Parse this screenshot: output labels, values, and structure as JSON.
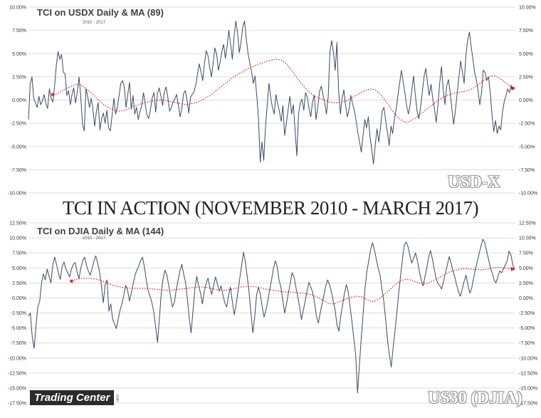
{
  "main_title": "TCI IN ACTION (NOVEMBER 2010 - MARCH 2017)",
  "colors": {
    "line": "#3b4a63",
    "ma": "#e02020",
    "grid": "#dcdcdc",
    "axis_text": "#333333"
  },
  "chart_data": [
    {
      "type": "line",
      "title": "TCI on USDX Daily & MA (89)",
      "subtitle": "2010 - 2017",
      "watermark": "USD-X",
      "ylim": [
        -10,
        10
      ],
      "ytick_labels": [
        "10.00%",
        "7.50%",
        "5.00%",
        "2.50%",
        "0.00%",
        "-2.50%",
        "-5.00%",
        "-7.50%",
        "-10.00%"
      ],
      "yticks": [
        10,
        7.5,
        5,
        2.5,
        0,
        -2.5,
        -5,
        -7.5,
        -10
      ],
      "grid": true,
      "series": [
        {
          "values": [
            -2.1,
            1.7,
            2.5,
            0.2,
            -0.3,
            -0.8,
            0.4,
            -0.5,
            -0.1,
            0.6,
            -0.4,
            -0.9,
            1.2,
            0.2,
            -0.2,
            1.5,
            3.8,
            5.2,
            4.4,
            4.9,
            3.0,
            2.8,
            0.5,
            1.0,
            -0.5,
            0.6,
            1.3,
            -0.3,
            0.8,
            2.5,
            0.4,
            -2.6,
            -3.3,
            1.2,
            0.4,
            -0.8,
            0.2,
            -1.0,
            -2.8,
            -1.2,
            -0.3,
            -3.2,
            -2.0,
            -1.4,
            -2.5,
            -1.1,
            -3.0,
            -3.3,
            -1.6,
            0.2,
            -1.5,
            -0.8,
            0.5,
            1.8,
            2.1,
            1.4,
            -0.8,
            0.6,
            1.9,
            -1.0,
            0.5,
            -1.5,
            -0.8,
            -2.1,
            -1.2,
            -0.6,
            0.8,
            -0.5,
            -1.6,
            -2.0,
            -1.0,
            0.2,
            0.8,
            -1.3,
            0.7,
            1.3,
            0.4,
            -0.6,
            0.9,
            1.4,
            0.3,
            -1.2,
            -0.8,
            -0.2,
            0.1,
            0.6,
            -0.5,
            -1.8,
            -0.9,
            0.7,
            1.0,
            0.0,
            -1.4,
            0.3,
            0.6,
            0.9,
            1.6,
            2.8,
            3.9,
            3.0,
            2.1,
            4.0,
            5.3,
            4.8,
            3.5,
            2.5,
            4.0,
            5.6,
            4.9,
            3.2,
            4.1,
            5.2,
            6.0,
            4.5,
            5.8,
            7.5,
            6.0,
            4.4,
            6.9,
            8.5,
            7.2,
            5.1,
            6.3,
            7.9,
            8.5,
            6.6,
            5.0,
            4.0,
            3.1,
            1.8,
            2.6,
            0.5,
            -2.0,
            -6.7,
            -4.5,
            -6.5,
            -3.0,
            -0.5,
            1.8,
            0.3,
            -0.8,
            -1.5,
            0.6,
            -0.4,
            -1.2,
            -2.3,
            -0.6,
            -3.8,
            -2.5,
            -1.0,
            0.4,
            -1.5,
            -0.5,
            -3.2,
            -6.0,
            -1.5,
            -0.3,
            0.1,
            -1.1,
            0.8,
            0.3,
            -0.9,
            -1.8,
            -0.2,
            0.5,
            -2.1,
            -0.8,
            0.9,
            1.5,
            0.6,
            -0.3,
            -1.5,
            0.4,
            5.2,
            6.4,
            5.1,
            3.2,
            6.2,
            1.0,
            -1.5,
            0.2,
            1.1,
            -0.6,
            -1.8,
            -1.0,
            0.5,
            -0.4,
            -1.1,
            -2.2,
            -3.5,
            -4.5,
            -5.6,
            -3.8,
            -2.1,
            -3.0,
            -1.8,
            -3.9,
            -5.4,
            -6.9,
            -4.8,
            -3.1,
            -4.5,
            -3.0,
            -1.2,
            -0.8,
            -2.2,
            -3.5,
            -4.9,
            -2.8,
            -3.6,
            -2.0,
            -1.0,
            0.5,
            1.8,
            3.2,
            2.0,
            0.8,
            -0.6,
            -1.5,
            -0.5,
            1.1,
            2.6,
            0.5,
            -1.2,
            -2.0,
            -0.8,
            0.9,
            2.5,
            3.4,
            1.8,
            0.5,
            1.7,
            0.2,
            -1.0,
            -2.4,
            -0.5,
            1.8,
            3.6,
            1.2,
            -0.5,
            1.5,
            2.2,
            0.8,
            -1.0,
            -2.6,
            -1.1,
            0.7,
            2.5,
            4.2,
            3.0,
            1.8,
            4.8,
            6.4,
            7.3,
            5.8,
            4.5,
            3.0,
            2.2,
            1.0,
            -0.5,
            0.8,
            3.2,
            3.0,
            2.1,
            2.5,
            0.8,
            -1.6,
            -3.4,
            -2.2,
            -3.6,
            -2.8,
            -3.2,
            -1.3,
            -0.2,
            0.5,
            1.2,
            0.8,
            1.6,
            1.1,
            1.3
          ]
        },
        {
          "name": "",
          "start_index": 14,
          "values": [
            0.6,
            0.7,
            1.0,
            1.3,
            1.5,
            1.7,
            1.6,
            1.2,
            0.8,
            0.3,
            -0.2,
            -0.6,
            -0.9,
            -1.1,
            -1.2,
            -1.1,
            -0.9,
            -0.7,
            -0.5,
            -0.3,
            -0.2,
            -0.1,
            0.0,
            0.0,
            -0.1,
            -0.2,
            -0.3,
            -0.4,
            -0.5,
            -0.4,
            -0.3,
            -0.1,
            0.2,
            0.5,
            0.9,
            1.3,
            1.7,
            2.1,
            2.5,
            2.8,
            3.1,
            3.4,
            3.6,
            3.8,
            4.0,
            4.2,
            4.3,
            4.4,
            4.3,
            3.9,
            3.3,
            2.6,
            1.9,
            1.3,
            0.8,
            0.4,
            0.2,
            0.0,
            -0.2,
            -0.3,
            -0.3,
            -0.2,
            0.0,
            0.3,
            0.6,
            0.9,
            1.1,
            1.2,
            1.0,
            0.5,
            -0.2,
            -0.9,
            -1.6,
            -2.1,
            -2.4,
            -2.3,
            -2.0,
            -1.6,
            -1.2,
            -0.8,
            -0.4,
            0.0,
            0.3,
            0.5,
            0.7,
            0.8,
            0.9,
            1.0,
            1.2,
            1.5,
            1.9,
            2.3,
            2.6,
            2.6,
            2.3,
            1.9,
            1.5,
            1.3
          ]
        }
      ]
    },
    {
      "type": "line",
      "title": "TCI on DJIA Daily & MA (144)",
      "subtitle": "2010 - 2017",
      "watermark": "US30 (DJIA)",
      "ylim": [
        -17.5,
        12.5
      ],
      "ytick_labels": [
        "12.50%",
        "10.00%",
        "7.50%",
        "5.00%",
        "2.50%",
        "0.00%",
        "-2.50%",
        "-5.00%",
        "-7.50%",
        "-10.00%",
        "-12.50%",
        "-15.00%",
        "-17.50%"
      ],
      "yticks": [
        12.5,
        10,
        7.5,
        5,
        2.5,
        0,
        -2.5,
        -5,
        -7.5,
        -10,
        -12.5,
        -15,
        -17.5
      ],
      "grid": true,
      "series": [
        {
          "values": [
            -3.0,
            -2.5,
            -6.5,
            -8.4,
            -4.8,
            -1.5,
            -0.5,
            2.5,
            4.0,
            3.0,
            4.8,
            3.6,
            2.5,
            5.5,
            6.8,
            5.6,
            4.2,
            3.1,
            5.2,
            6.0,
            4.8,
            4.2,
            3.5,
            4.8,
            5.6,
            5.9,
            4.3,
            3.2,
            5.0,
            6.2,
            6.8,
            5.5,
            4.5,
            3.8,
            4.9,
            6.1,
            7.0,
            5.8,
            4.4,
            2.1,
            -0.8,
            2.2,
            3.0,
            -2.2,
            -1.0,
            -3.5,
            -4.3,
            -5.1,
            -3.5,
            -2.0,
            -1.0,
            0.5,
            2.1,
            1.3,
            -0.5,
            0.8,
            2.4,
            3.8,
            4.7,
            5.3,
            6.2,
            6.8,
            5.1,
            3.0,
            1.2,
            0.3,
            -0.8,
            -2.3,
            -4.8,
            -7.4,
            -3.5,
            0.8,
            3.2,
            4.6,
            3.8,
            2.1,
            0.3,
            -1.5,
            -0.8,
            1.3,
            3.0,
            4.5,
            5.6,
            4.0,
            2.5,
            -0.2,
            -3.5,
            -5.8,
            -2.0,
            1.5,
            3.6,
            2.0,
            0.8,
            -1.0,
            1.1,
            2.4,
            3.3,
            1.8,
            0.6,
            2.0,
            3.5,
            2.4,
            1.1,
            2.0,
            0.5,
            -0.8,
            -1.5,
            0.4,
            1.8,
            -0.5,
            -2.8,
            -1.2,
            1.0,
            3.2,
            5.5,
            7.6,
            6.0,
            3.5,
            0.8,
            -2.6,
            -5.8,
            -3.0,
            0.5,
            1.8,
            0.6,
            -1.5,
            -3.2,
            -2.0,
            -0.5,
            1.4,
            3.0,
            4.9,
            6.2,
            5.2,
            3.0,
            1.8,
            -0.4,
            -2.5,
            -1.0,
            0.8,
            2.5,
            4.2,
            3.5,
            1.8,
            0.2,
            -1.5,
            -3.6,
            -2.0,
            -0.5,
            1.2,
            2.6,
            1.8,
            0.9,
            -0.8,
            -3.0,
            -4.2,
            -2.5,
            -1.0,
            0.5,
            2.0,
            3.0,
            2.2,
            1.0,
            -0.5,
            -2.0,
            -4.5,
            -5.5,
            -3.0,
            -1.2,
            0.8,
            2.2,
            1.0,
            -1.5,
            -4.0,
            -6.8,
            -9.5,
            -15.8,
            -11.0,
            -6.5,
            -2.5,
            1.6,
            4.5,
            6.2,
            8.1,
            9.2,
            8.0,
            6.5,
            5.0,
            3.8,
            1.5,
            -0.5,
            -3.5,
            -7.0,
            -9.5,
            -11.5,
            -8.2,
            -5.5,
            -2.5,
            0.8,
            3.8,
            6.5,
            8.8,
            9.3,
            8.5,
            7.0,
            5.8,
            6.6,
            7.5,
            6.2,
            4.5,
            3.0,
            2.0,
            3.5,
            5.0,
            6.8,
            7.9,
            6.5,
            4.8,
            3.2,
            2.4,
            2.0,
            1.5,
            2.8,
            4.2,
            5.5,
            6.9,
            5.8,
            4.5,
            3.5,
            2.1,
            1.0,
            0.3,
            1.5,
            2.8,
            3.8,
            2.2,
            0.8,
            1.6,
            3.2,
            4.8,
            6.0,
            7.4,
            8.6,
            9.8,
            9.2,
            7.8,
            6.5,
            5.0,
            4.2,
            3.0,
            2.5,
            3.5,
            4.5,
            4.2,
            4.8,
            5.5,
            6.2,
            7.8,
            7.2,
            5.5,
            4.8
          ]
        },
        {
          "name": "",
          "start_index": 23,
          "values": [
            2.8,
            3.1,
            3.3,
            3.3,
            3.2,
            3.0,
            2.7,
            2.3,
            2.0,
            1.8,
            1.7,
            1.6,
            1.6,
            1.6,
            1.6,
            1.5,
            1.4,
            1.3,
            1.3,
            1.4,
            1.5,
            1.6,
            1.7,
            1.8,
            1.8,
            1.7,
            1.5,
            1.3,
            1.3,
            1.4,
            1.6,
            1.8,
            1.9,
            1.9,
            1.8,
            1.6,
            1.4,
            1.3,
            1.1,
            1.0,
            1.0,
            0.9,
            0.8,
            0.7,
            0.5,
            0.1,
            -0.4,
            -0.9,
            -1.0,
            -0.6,
            -0.2,
            0.1,
            0.3,
            0.2,
            -0.3,
            -0.6,
            -0.3,
            0.4,
            1.2,
            2.1,
            2.8,
            3.1,
            3.0,
            2.6,
            2.4,
            2.4,
            2.8,
            3.3,
            3.8,
            4.3,
            4.6,
            4.8,
            4.9,
            4.8,
            4.7,
            4.7,
            4.8,
            5.0,
            5.1,
            5.0,
            4.9,
            4.8
          ]
        }
      ]
    }
  ],
  "logo": {
    "text": "Trading Center",
    "tm": ".com"
  }
}
